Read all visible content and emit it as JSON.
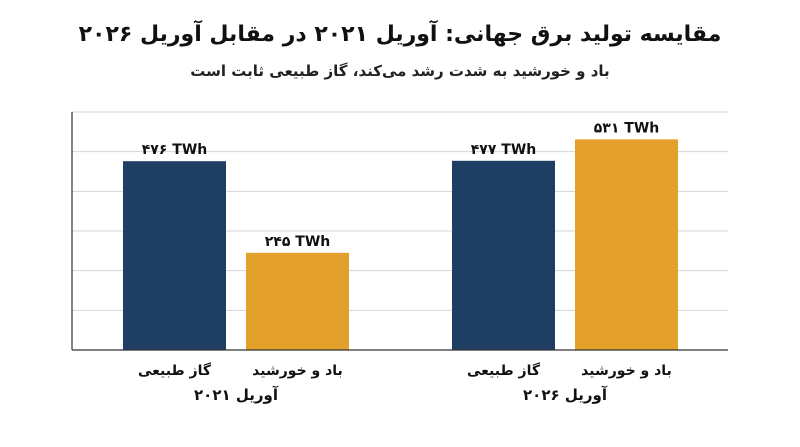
{
  "chart_data": {
    "type": "bar",
    "title": "مقایسه تولید برق جهانی: آوریل ۲۰۲۱ در مقابل آوریل ۲۰۲۶",
    "subtitle": "باد و خورشید به شدت رشد می‌کند، گاز طبیعی ثابت است",
    "groups": [
      "آوریل ۲۰۲۱",
      "آوریل ۲۰۲۶"
    ],
    "series": [
      {
        "name": "گاز طبیعی",
        "color": "#1f3e63",
        "values": [
          476,
          477
        ],
        "labels": [
          "۴۷۶ TWh",
          "۴۷۷ TWh"
        ]
      },
      {
        "name": "باد و خورشید",
        "color": "#e3a02a",
        "values": [
          245,
          531
        ],
        "labels": [
          "۲۴۵ TWh",
          "۵۳۱ TWh"
        ]
      }
    ],
    "ylim": [
      0,
      600
    ],
    "grid": true
  }
}
